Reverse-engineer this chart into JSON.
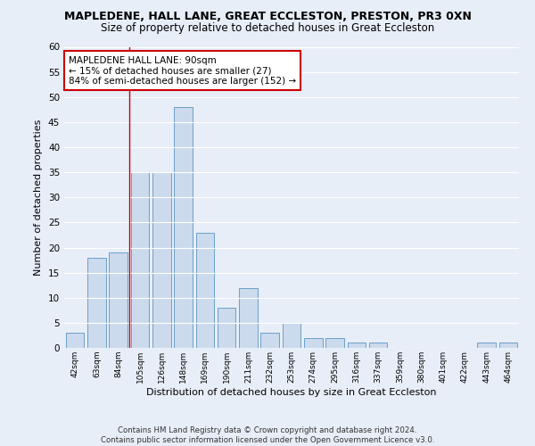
{
  "title": "MAPLEDENE, HALL LANE, GREAT ECCLESTON, PRESTON, PR3 0XN",
  "subtitle": "Size of property relative to detached houses in Great Eccleston",
  "xlabel": "Distribution of detached houses by size in Great Eccleston",
  "ylabel": "Number of detached properties",
  "bar_color": "#ccdaed",
  "bar_edge_color": "#6a9fc8",
  "background_color": "#e8eef8",
  "fig_background_color": "#e8eef8",
  "grid_color": "#ffffff",
  "categories": [
    "42sqm",
    "63sqm",
    "84sqm",
    "105sqm",
    "126sqm",
    "148sqm",
    "169sqm",
    "190sqm",
    "211sqm",
    "232sqm",
    "253sqm",
    "274sqm",
    "295sqm",
    "316sqm",
    "337sqm",
    "359sqm",
    "380sqm",
    "401sqm",
    "422sqm",
    "443sqm",
    "464sqm"
  ],
  "values": [
    3,
    18,
    19,
    35,
    35,
    48,
    23,
    8,
    12,
    3,
    5,
    2,
    2,
    1,
    1,
    0,
    0,
    0,
    0,
    1,
    1
  ],
  "ylim": [
    0,
    60
  ],
  "yticks": [
    0,
    5,
    10,
    15,
    20,
    25,
    30,
    35,
    40,
    45,
    50,
    55,
    60
  ],
  "vline_x": 2.5,
  "vline_color": "#cc0000",
  "annotation_title": "MAPLEDENE HALL LANE: 90sqm",
  "annotation_line1": "← 15% of detached houses are smaller (27)",
  "annotation_line2": "84% of semi-detached houses are larger (152) →",
  "annotation_box_color": "#ffffff",
  "annotation_border_color": "#cc0000",
  "footer1": "Contains HM Land Registry data © Crown copyright and database right 2024.",
  "footer2": "Contains public sector information licensed under the Open Government Licence v3.0."
}
